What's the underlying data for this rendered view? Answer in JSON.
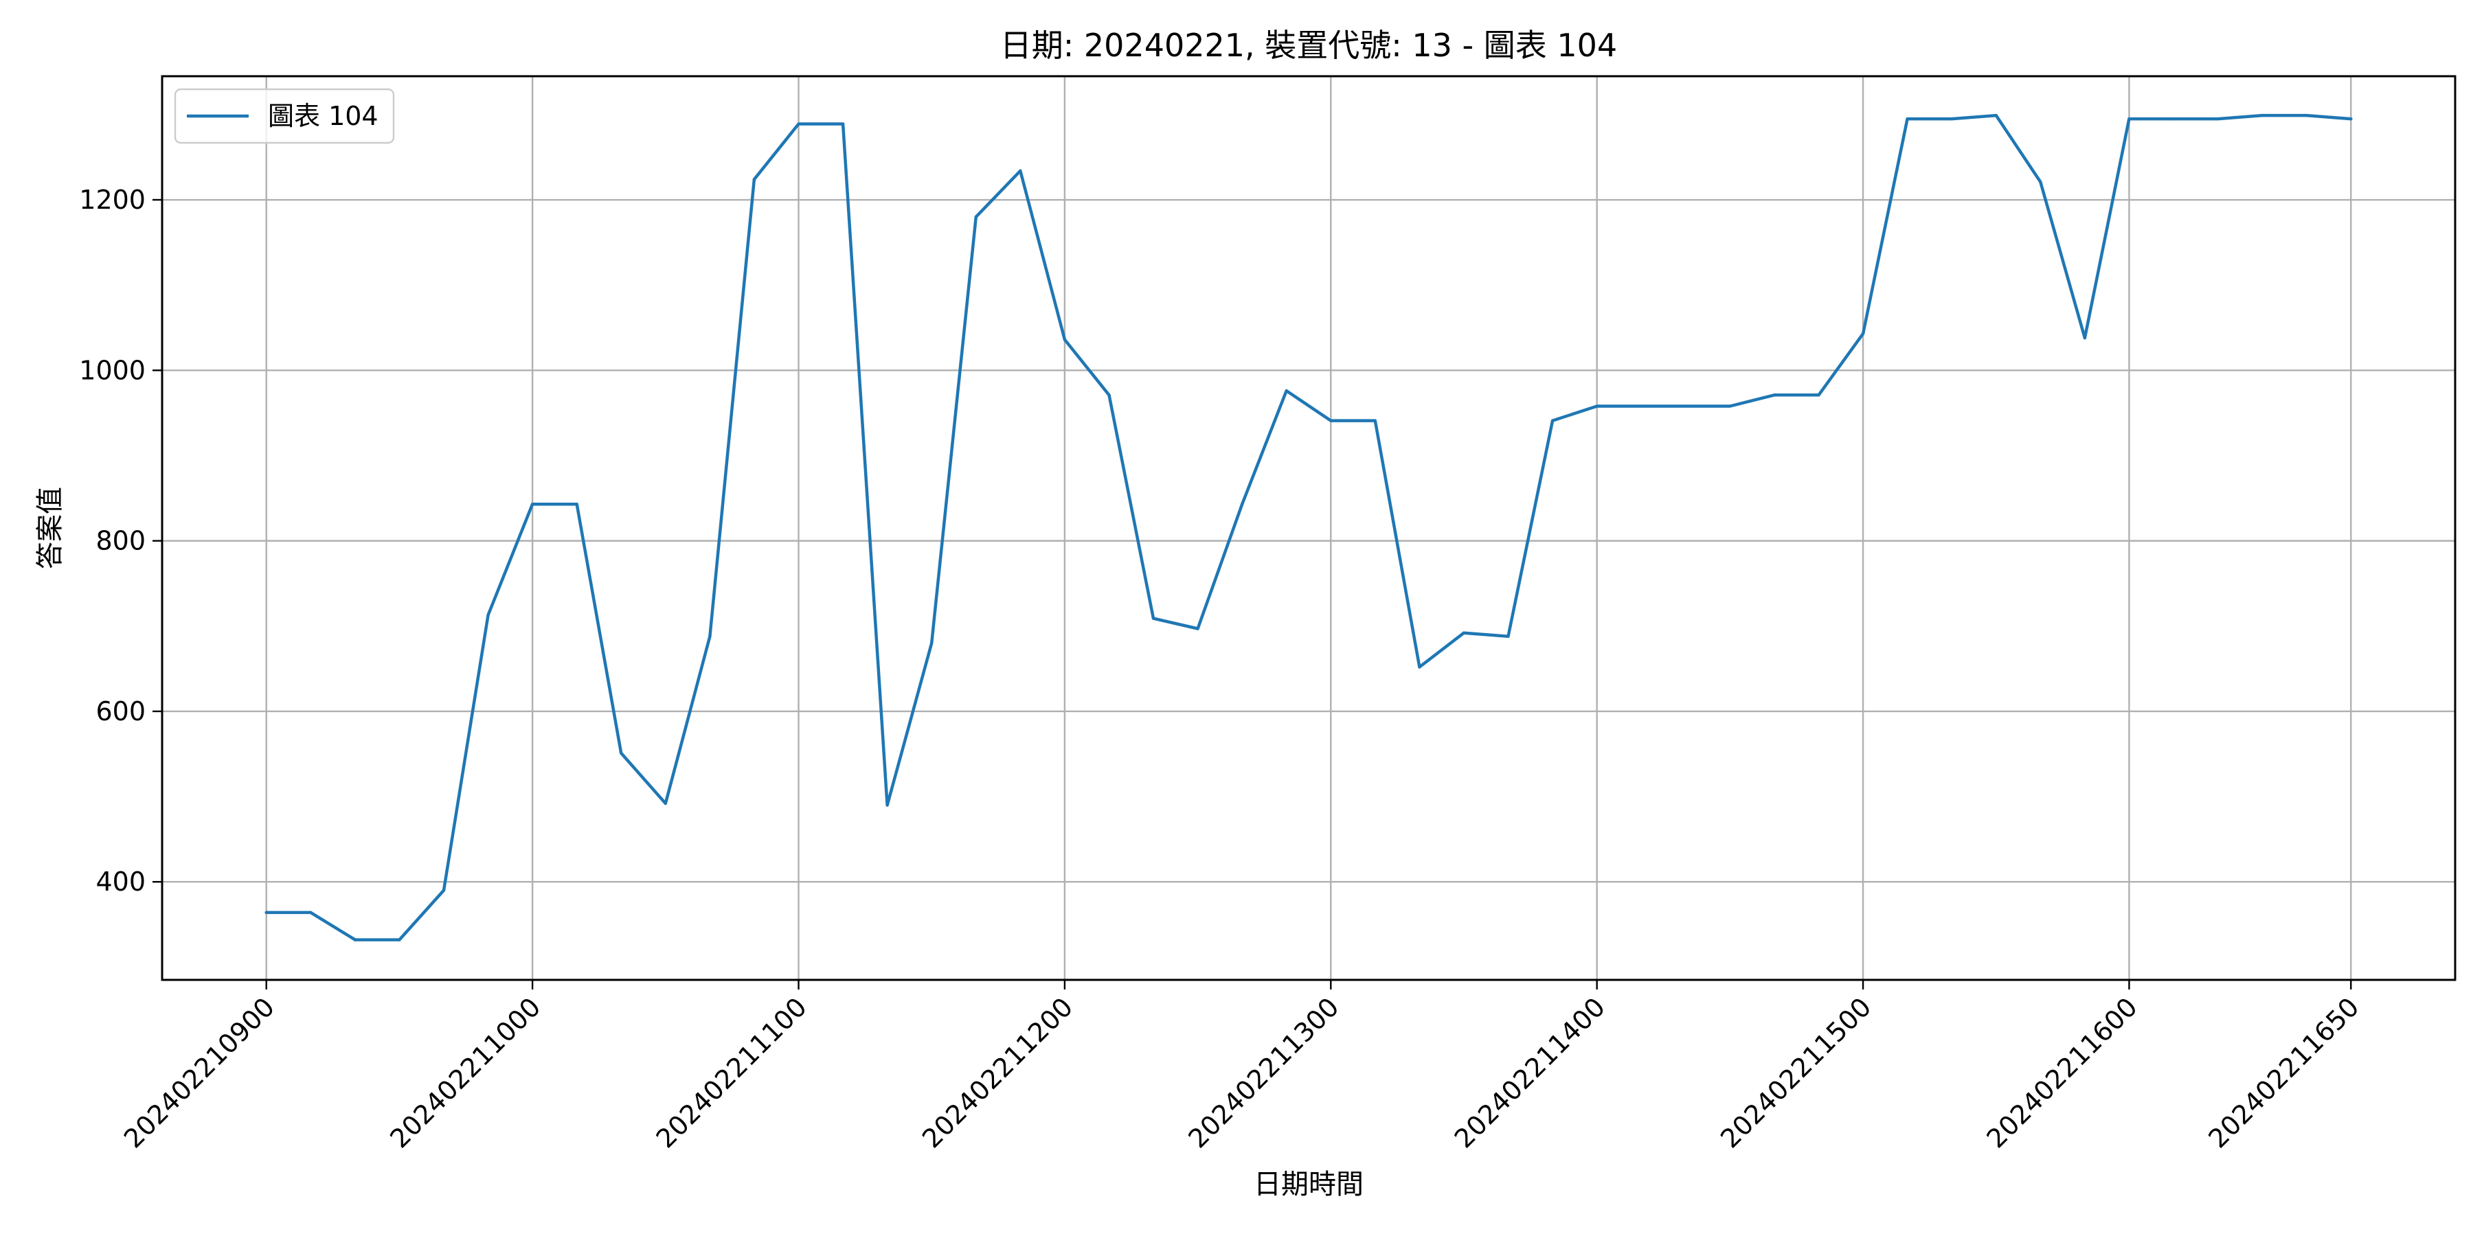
{
  "chart_data": {
    "type": "line",
    "title": "日期: 20240221, 裝置代號: 13 - 圖表 104",
    "xlabel": "日期時間",
    "ylabel": "答案值",
    "grid": true,
    "legend_position": "top-left",
    "x_tick_labels": [
      "202402210900",
      "202402211000",
      "202402211100",
      "202402211200",
      "202402211300",
      "202402211400",
      "202402211500",
      "202402211600",
      "202402211650"
    ],
    "x_tick_minutes": [
      0,
      60,
      120,
      180,
      240,
      300,
      360,
      420,
      470
    ],
    "y_ticks": [
      400,
      600,
      800,
      1000,
      1200
    ],
    "ylim": [
      285,
      1345
    ],
    "xlim": [
      -23.5,
      493.5
    ],
    "series": [
      {
        "name": "圖表 104",
        "color": "#1f77b4",
        "x": [
          0,
          10,
          20,
          30,
          40,
          50,
          60,
          70,
          80,
          90,
          100,
          110,
          120,
          130,
          140,
          150,
          160,
          170,
          180,
          190,
          200,
          210,
          220,
          230,
          240,
          250,
          260,
          270,
          280,
          290,
          300,
          310,
          320,
          330,
          340,
          350,
          360,
          370,
          380,
          390,
          400,
          410,
          420,
          430,
          440,
          450,
          460,
          470
        ],
        "values": [
          364,
          364,
          332,
          332,
          390,
          713,
          843,
          843,
          551,
          492,
          688,
          1224,
          1289,
          1289,
          490,
          680,
          1180,
          1234,
          1036,
          971,
          709,
          697,
          843,
          976,
          941,
          941,
          652,
          692,
          688,
          941,
          958,
          958,
          958,
          958,
          971,
          971,
          1043,
          1295,
          1295,
          1299,
          1221,
          1038,
          1295,
          1295,
          1295,
          1299,
          1299,
          1295
        ]
      }
    ]
  }
}
